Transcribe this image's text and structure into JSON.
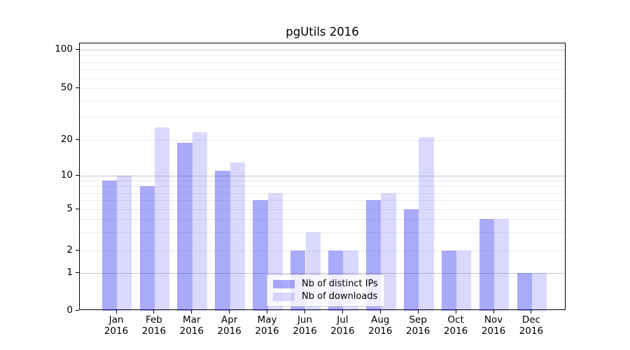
{
  "title": "pgUtils 2016",
  "chart_data": {
    "type": "bar",
    "title": "pgUtils 2016",
    "categories": [
      "Jan",
      "Feb",
      "Mar",
      "Apr",
      "May",
      "Jun",
      "Jul",
      "Aug",
      "Sep",
      "Oct",
      "Nov",
      "Dec"
    ],
    "category_year": "2016",
    "series": [
      {
        "name": "Nb of distinct IPs",
        "color": "rgba(20,20,240,0.36)",
        "values": [
          9,
          8,
          19,
          11,
          6,
          2,
          2,
          6,
          5,
          2,
          4,
          1
        ]
      },
      {
        "name": "Nb of downloads",
        "color": "rgba(20,20,240,0.16)",
        "values": [
          10,
          25,
          23,
          13,
          7,
          3,
          2,
          7,
          21,
          2,
          4,
          1
        ]
      }
    ],
    "xlabel": "",
    "ylabel": "",
    "y_axis": {
      "tick_labels": [
        "0",
        "1",
        "2",
        "5",
        "10",
        "20",
        "50",
        "100"
      ],
      "tick_values": [
        0,
        1,
        2,
        5,
        10,
        20,
        50,
        100
      ],
      "major_grid_values": [
        1,
        10,
        100
      ],
      "minor_grid_values": [
        2,
        3,
        4,
        5,
        6,
        7,
        8,
        9,
        20,
        30,
        40,
        50,
        60,
        70,
        80,
        90
      ],
      "scale": "quasi-log (logarithmic above 1, linear 0 to 1)",
      "ylim": [
        0,
        110
      ]
    },
    "legend": {
      "entries": [
        "Nb of distinct IPs",
        "Nb of downloads"
      ],
      "position": "inside lower center"
    },
    "grid": "horizontal only"
  },
  "colors": {
    "background": "#ffffff",
    "bar_distinct_ips_rendered": "#a9a9f7",
    "bar_downloads_rendered": "#dadaf9",
    "major_gridline": "#c6c6c6",
    "minor_gridline": "#ebebeb",
    "axis": "#000000",
    "legend_border": "#cfcfcf"
  }
}
